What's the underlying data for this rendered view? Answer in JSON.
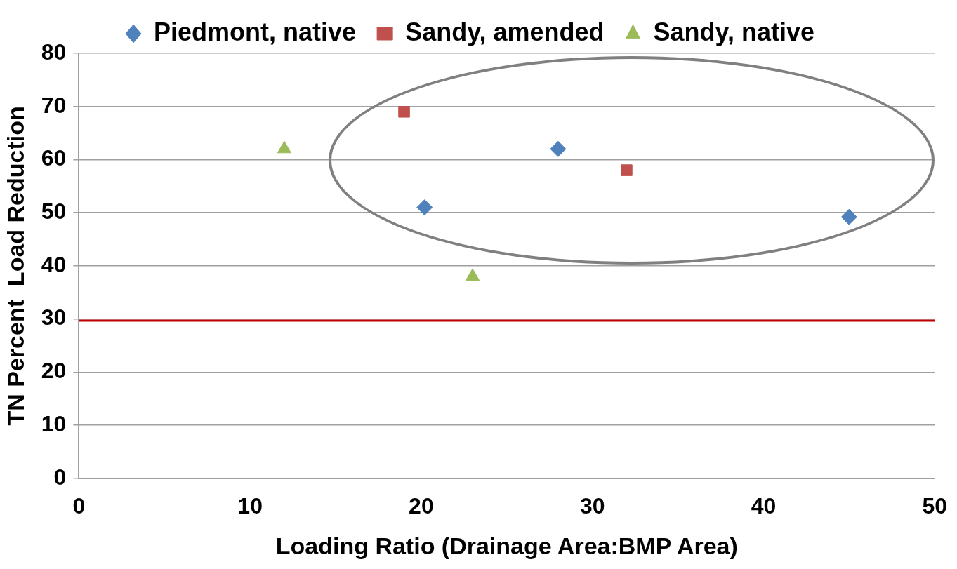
{
  "chart_data": {
    "type": "scatter",
    "xlabel": "Loading Ratio (Drainage Area:BMP Area)",
    "ylabel": "TN Percent  Load Reduction",
    "xlim": [
      0,
      50
    ],
    "xticks": [
      0,
      10,
      20,
      30,
      40,
      50
    ],
    "ylim": [
      0,
      80
    ],
    "yticks": [
      0,
      10,
      20,
      30,
      40,
      50,
      60,
      70,
      80
    ],
    "grid": "y",
    "legend": "top",
    "series": [
      {
        "name": "Piedmont, native",
        "color": "#4f81bd",
        "marker": "diamond",
        "x": [
          20.2,
          28,
          45
        ],
        "values": [
          51,
          62,
          49.2
        ]
      },
      {
        "name": "Sandy, amended",
        "color": "#c0504d",
        "marker": "square",
        "x": [
          19,
          32
        ],
        "values": [
          69,
          58
        ]
      },
      {
        "name": "Sandy, native",
        "color": "#9bbb59",
        "marker": "triangle",
        "x": [
          12,
          23
        ],
        "values": [
          62,
          38
        ]
      }
    ],
    "ref_lines": [
      {
        "axis": "y",
        "value": 29.7,
        "color": "#c00000"
      }
    ]
  }
}
